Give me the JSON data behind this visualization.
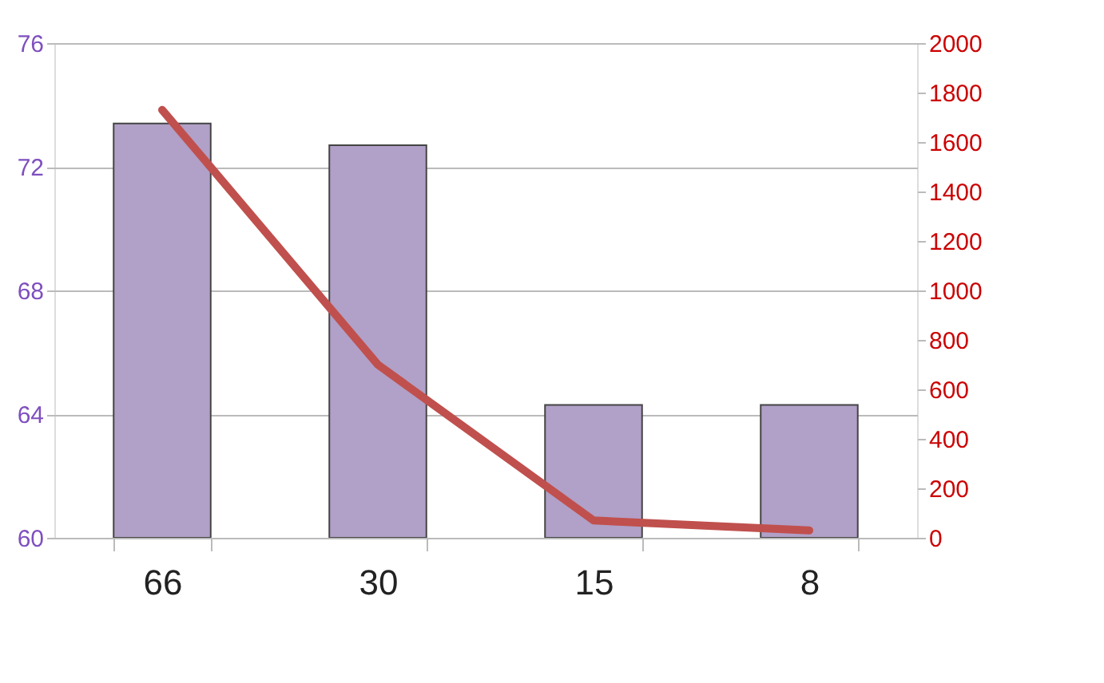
{
  "chart_data": {
    "type": "bar",
    "categories": [
      "66",
      "30",
      "15",
      "8"
    ],
    "series": [
      {
        "color": "#b1a0c7",
        "values": [
          73.4,
          72.7,
          64.3,
          64.3
        ]
      },
      {
        "type": "line",
        "axis": "y2",
        "color": "#c0504d",
        "values": [
          1730,
          700,
          70,
          30
        ]
      }
    ],
    "ylim": [
      60,
      76
    ],
    "yticks": [
      60,
      64,
      68,
      72,
      76
    ],
    "y2lim": [
      0,
      2000
    ],
    "y2ticks": [
      0,
      200,
      400,
      600,
      800,
      1000,
      1200,
      1400,
      1600,
      1800,
      2000
    ],
    "grid": "y"
  }
}
